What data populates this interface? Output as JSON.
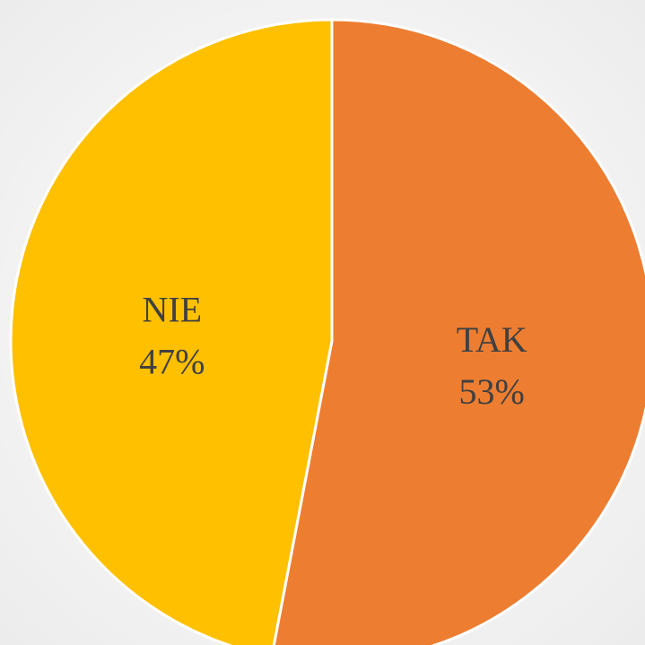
{
  "chart_data": {
    "type": "pie",
    "categories": [
      "TAK",
      "NIE"
    ],
    "values": [
      53,
      47
    ],
    "value_labels": [
      "53%",
      "47%"
    ],
    "colors": [
      "#ED7D31",
      "#FFC000"
    ]
  }
}
